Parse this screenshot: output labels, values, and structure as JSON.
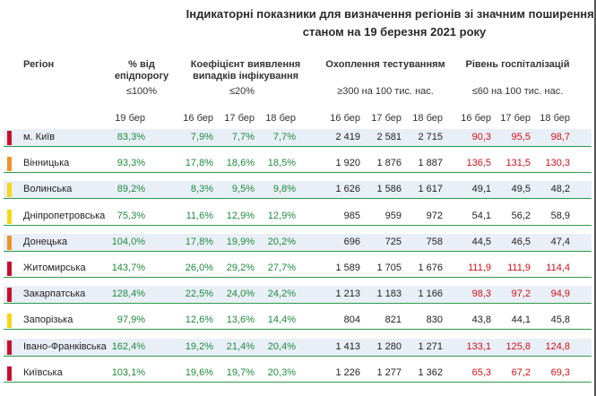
{
  "title_line1": "Індикаторні показники для визначення регіонів зі значним поширенням",
  "title_line2": "станом на 19 березня 2021 року",
  "headers": {
    "region": "Регіон",
    "epid": "% від епідпорогу",
    "epid_threshold": "≤100%",
    "coef": "Коефіцієнт виявлення випадків інфікування",
    "coef_threshold": "≤20%",
    "testing": "Охоплення тестуванням",
    "testing_threshold": "≥300 на 100 тис. нас.",
    "hosp": "Рівень госпіталізацій",
    "hosp_threshold": "≤60 на 100 тис. нас."
  },
  "dates": {
    "epid": "19 бер",
    "d16": "16 бер",
    "d17": "17 бер",
    "d18": "18 бер"
  },
  "colors": {
    "red": "#c8102e",
    "orange": "#f0922b",
    "yellow": "#f7d617",
    "green_text": "#1f8a3d",
    "red_text": "#d0101a"
  },
  "rows": [
    {
      "region": "м. Київ",
      "level": "red",
      "epid": "83,3%",
      "coef": [
        "7,9%",
        "7,7%",
        "7,7%"
      ],
      "test": [
        "2 419",
        "2 581",
        "2 715"
      ],
      "hosp": [
        "90,3",
        "95,5",
        "98,7"
      ],
      "hosp_color": "red"
    },
    {
      "region": "Вінницька",
      "level": "orange",
      "epid": "93,3%",
      "coef": [
        "17,8%",
        "18,6%",
        "18,5%"
      ],
      "test": [
        "1 920",
        "1 876",
        "1 887"
      ],
      "hosp": [
        "136,5",
        "131,5",
        "130,3"
      ],
      "hosp_color": "red"
    },
    {
      "region": "Волинська",
      "level": "yellow",
      "epid": "89,2%",
      "coef": [
        "8,3%",
        "9,5%",
        "9,8%"
      ],
      "test": [
        "1 626",
        "1 586",
        "1 617"
      ],
      "hosp": [
        "49,1",
        "49,5",
        "48,2"
      ],
      "hosp_color": "black"
    },
    {
      "region": "Дніпропетровська",
      "level": "yellow",
      "epid": "75,3%",
      "coef": [
        "11,6%",
        "12,9%",
        "12,9%"
      ],
      "test": [
        "985",
        "959",
        "972"
      ],
      "hosp": [
        "54,1",
        "56,2",
        "58,9"
      ],
      "hosp_color": "black"
    },
    {
      "region": "Донецька",
      "level": "orange",
      "epid": "104,0%",
      "coef": [
        "17,8%",
        "19,9%",
        "20,2%"
      ],
      "test": [
        "696",
        "725",
        "758"
      ],
      "hosp": [
        "44,5",
        "46,5",
        "47,4"
      ],
      "hosp_color": "black"
    },
    {
      "region": "Житомирська",
      "level": "red",
      "epid": "143,7%",
      "coef": [
        "26,0%",
        "29,2%",
        "27,7%"
      ],
      "test": [
        "1 589",
        "1 705",
        "1 676"
      ],
      "hosp": [
        "111,9",
        "111,9",
        "114,4"
      ],
      "hosp_color": "red"
    },
    {
      "region": "Закарпатська",
      "level": "red",
      "epid": "128,4%",
      "coef": [
        "22,5%",
        "24,0%",
        "24,2%"
      ],
      "test": [
        "1 213",
        "1 183",
        "1 166"
      ],
      "hosp": [
        "98,3",
        "97,2",
        "94,9"
      ],
      "hosp_color": "red"
    },
    {
      "region": "Запорізька",
      "level": "yellow",
      "epid": "97,9%",
      "coef": [
        "12,6%",
        "13,6%",
        "14,4%"
      ],
      "test": [
        "804",
        "821",
        "830"
      ],
      "hosp": [
        "43,8",
        "44,1",
        "45,8"
      ],
      "hosp_color": "black"
    },
    {
      "region": "Івано-Франківська",
      "level": "red",
      "epid": "162,4%",
      "coef": [
        "19,2%",
        "21,4%",
        "20,4%"
      ],
      "test": [
        "1 413",
        "1 280",
        "1 271"
      ],
      "hosp": [
        "133,1",
        "125,8",
        "124,8"
      ],
      "hosp_color": "red"
    },
    {
      "region": "Київська",
      "level": "red",
      "epid": "103,1%",
      "coef": [
        "19,6%",
        "19,7%",
        "20,3%"
      ],
      "test": [
        "1 226",
        "1 277",
        "1 362"
      ],
      "hosp": [
        "65,3",
        "67,2",
        "69,3"
      ],
      "hosp_color": "red"
    }
  ]
}
